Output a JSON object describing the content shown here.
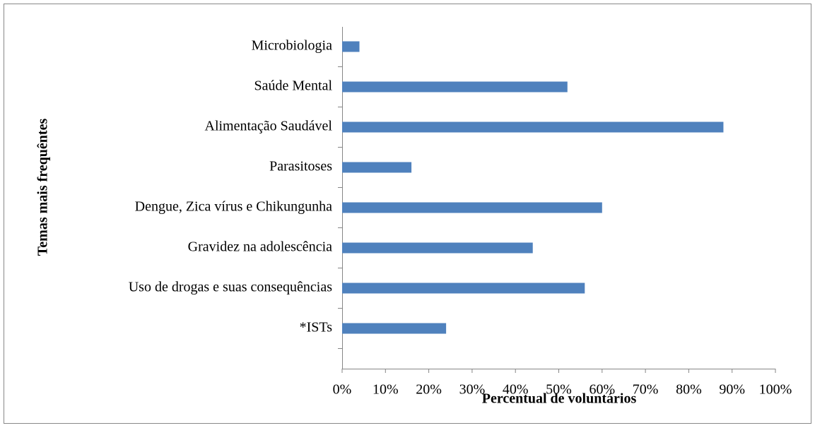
{
  "chart_data": {
    "type": "bar",
    "orientation": "horizontal",
    "xlabel": "Percentual de voluntários",
    "ylabel": "Temas mais frequêntes",
    "categories": [
      "Microbiologia",
      "Saúde Mental",
      "Alimentação Saudável",
      "Parasitoses",
      "Dengue, Zica vírus e Chikungunha",
      "Gravidez na adolescência",
      "Uso de drogas e suas consequências",
      "*ISTs"
    ],
    "values": [
      4,
      52,
      88,
      16,
      60,
      44,
      56,
      24
    ],
    "color": "#4f81bd",
    "xlim": [
      0,
      100
    ],
    "xticks": [
      {
        "value": 0,
        "label": "0%"
      },
      {
        "value": 10,
        "label": "10%"
      },
      {
        "value": 20,
        "label": "20%"
      },
      {
        "value": 30,
        "label": "30%"
      },
      {
        "value": 40,
        "label": "40%"
      },
      {
        "value": 50,
        "label": "50%"
      },
      {
        "value": 60,
        "label": "60%"
      },
      {
        "value": 70,
        "label": "70%"
      },
      {
        "value": 80,
        "label": "80%"
      },
      {
        "value": 90,
        "label": "90%"
      },
      {
        "value": 100,
        "label": "100%"
      }
    ],
    "grid": false
  }
}
